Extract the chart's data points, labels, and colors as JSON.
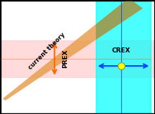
{
  "bg_color": "#ffffff",
  "fig_bg_color": "#000000",
  "prex_band_color": "#ffcccc",
  "prex_band_alpha": 0.7,
  "crex_band_color": "#00ffff",
  "crex_band_alpha": 0.7,
  "theory_band_color": "#e8a050",
  "theory_band_alpha": 0.85,
  "theory_overlap_color": "#7a9a50",
  "theory_overlap_alpha": 0.65,
  "arrow_color": "#ff6600",
  "crex_arrow_color": "#0044ff",
  "dot_color": "#ffff00",
  "dot_edgecolor": "#999900",
  "prex_label": "PREX",
  "crex_label": "CREX",
  "theory_label": "current theory",
  "xlim": [
    0,
    10
  ],
  "ylim": [
    0,
    10
  ],
  "prex_ymin": 3.2,
  "prex_ymax": 6.5,
  "prex_xcenter": 3.5,
  "crex_xmin": 6.2,
  "crex_xmax": 9.8,
  "crex_ycenter": 4.2,
  "crex_vcenter": 7.85,
  "dot_x": 7.85,
  "dot_y": 4.2,
  "theory_x1": 0.2,
  "theory_y1": 1.2,
  "theory_x2": 8.8,
  "theory_y2": 9.8,
  "theory_width_start": 0.25,
  "theory_width_end": 1.3,
  "overlap_ymin": 7.2
}
